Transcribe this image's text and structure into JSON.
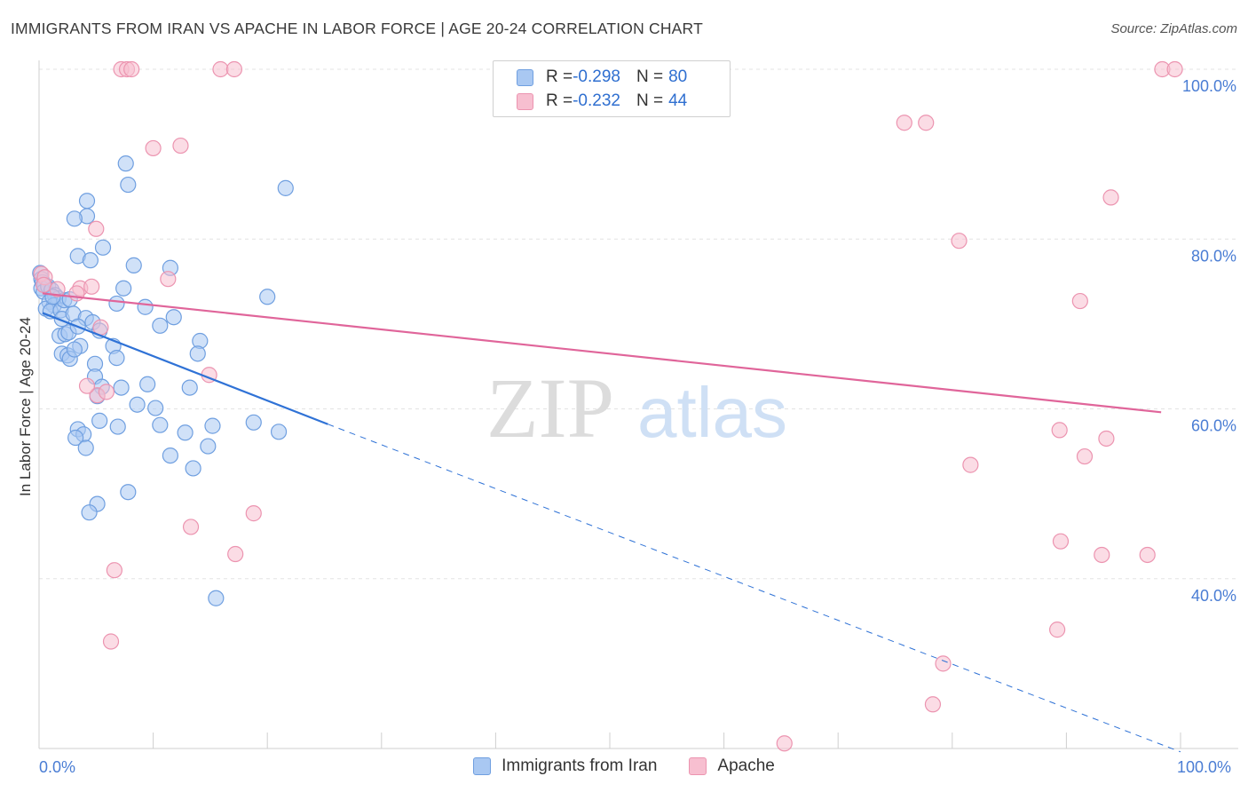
{
  "title": "IMMIGRANTS FROM IRAN VS APACHE IN LABOR FORCE | AGE 20-24 CORRELATION CHART",
  "source": "Source: ZipAtlas.com",
  "watermark": {
    "part1": "ZIP",
    "part2": "atlas"
  },
  "legend": {
    "rows": [
      {
        "r_label": "R = ",
        "r_value": "-0.298",
        "n_label": "N = ",
        "n_value": "80"
      },
      {
        "r_label": "R = ",
        "r_value": "-0.232",
        "n_label": "N = ",
        "n_value": "44"
      }
    ]
  },
  "bottom_legend": [
    "Immigrants from Iran",
    "Apache"
  ],
  "colors": {
    "iran_fill": "#a9c8f2",
    "iran_stroke": "#6f9fe0",
    "iran_line": "#2f72d6",
    "apache_fill": "#f7bfd0",
    "apache_stroke": "#ec94b0",
    "apache_line": "#e0659a",
    "axis_text": "#4a7dd4",
    "grid": "#e3e3e3"
  },
  "chart_data": {
    "type": "scatter",
    "title": "IMMIGRANTS FROM IRAN VS APACHE IN LABOR FORCE | AGE 20-24 CORRELATION CHART",
    "xlabel": "",
    "ylabel": "In Labor Force | Age 20-24",
    "xlim": [
      0,
      100
    ],
    "ylim": [
      20,
      100
    ],
    "x_tick_labels": [
      "0.0%",
      "100.0%"
    ],
    "y_ticks": [
      40,
      60,
      80,
      100
    ],
    "y_tick_labels": [
      "40.0%",
      "60.0%",
      "80.0%",
      "100.0%"
    ],
    "series": [
      {
        "name": "Immigrants from Iran",
        "r": -0.298,
        "n": 80,
        "trend": {
          "x0": 0.3,
          "y0": 71.3,
          "x1": 25.3,
          "y1": 58.2,
          "dash_to_x": 100,
          "dash_to_y": 19.6
        },
        "points": [
          [
            0.1,
            76.0
          ],
          [
            0.2,
            75.3
          ],
          [
            0.3,
            74.9
          ],
          [
            0.5,
            74.6
          ],
          [
            0.2,
            74.2
          ],
          [
            0.4,
            73.8
          ],
          [
            0.8,
            74.4
          ],
          [
            1.1,
            74.0
          ],
          [
            1.4,
            73.4
          ],
          [
            1.7,
            73.0
          ],
          [
            0.9,
            72.6
          ],
          [
            1.3,
            72.2
          ],
          [
            0.6,
            71.8
          ],
          [
            1.0,
            71.5
          ],
          [
            1.9,
            71.6
          ],
          [
            2.2,
            72.8
          ],
          [
            2.7,
            72.9
          ],
          [
            2.0,
            70.6
          ],
          [
            3.0,
            71.2
          ],
          [
            4.1,
            70.7
          ],
          [
            4.7,
            70.2
          ],
          [
            1.8,
            68.6
          ],
          [
            2.3,
            68.8
          ],
          [
            2.6,
            69.0
          ],
          [
            3.4,
            69.7
          ],
          [
            5.3,
            69.2
          ],
          [
            2.0,
            66.5
          ],
          [
            2.5,
            66.3
          ],
          [
            2.7,
            65.9
          ],
          [
            3.6,
            67.4
          ],
          [
            3.1,
            67.0
          ],
          [
            6.5,
            67.4
          ],
          [
            6.8,
            66.0
          ],
          [
            4.9,
            65.3
          ],
          [
            4.9,
            63.8
          ],
          [
            5.5,
            62.6
          ],
          [
            5.1,
            61.5
          ],
          [
            7.2,
            62.5
          ],
          [
            3.4,
            78.0
          ],
          [
            4.5,
            77.5
          ],
          [
            5.6,
            79.0
          ],
          [
            4.2,
            82.7
          ],
          [
            3.1,
            82.4
          ],
          [
            4.2,
            84.5
          ],
          [
            7.6,
            88.9
          ],
          [
            7.8,
            86.4
          ],
          [
            8.3,
            76.9
          ],
          [
            7.4,
            74.2
          ],
          [
            6.8,
            72.4
          ],
          [
            9.3,
            72.0
          ],
          [
            10.6,
            69.8
          ],
          [
            11.8,
            70.8
          ],
          [
            11.5,
            76.6
          ],
          [
            14.1,
            68.0
          ],
          [
            13.9,
            66.5
          ],
          [
            21.6,
            86.0
          ],
          [
            20.0,
            73.2
          ],
          [
            9.5,
            62.9
          ],
          [
            8.6,
            60.5
          ],
          [
            10.2,
            60.1
          ],
          [
            13.2,
            62.5
          ],
          [
            5.3,
            58.6
          ],
          [
            6.9,
            57.9
          ],
          [
            10.6,
            58.1
          ],
          [
            12.8,
            57.2
          ],
          [
            15.2,
            58.0
          ],
          [
            18.8,
            58.4
          ],
          [
            21.0,
            57.3
          ],
          [
            3.4,
            57.6
          ],
          [
            3.9,
            57.0
          ],
          [
            3.2,
            56.6
          ],
          [
            4.1,
            55.4
          ],
          [
            11.5,
            54.5
          ],
          [
            14.8,
            55.6
          ],
          [
            13.5,
            53.0
          ],
          [
            7.8,
            50.2
          ],
          [
            5.1,
            48.8
          ],
          [
            4.4,
            47.8
          ],
          [
            15.5,
            37.7
          ],
          [
            1.2,
            73.2
          ]
        ]
      },
      {
        "name": "Apache",
        "r": -0.232,
        "n": 44,
        "trend": {
          "x0": 0.3,
          "y0": 73.6,
          "x1": 98.3,
          "y1": 59.6
        },
        "points": [
          [
            7.2,
            100.0
          ],
          [
            7.7,
            100.0
          ],
          [
            8.1,
            100.0
          ],
          [
            15.9,
            100.0
          ],
          [
            17.1,
            100.0
          ],
          [
            98.4,
            100.0
          ],
          [
            99.5,
            100.0
          ],
          [
            10.0,
            90.7
          ],
          [
            12.4,
            91.0
          ],
          [
            75.8,
            93.7
          ],
          [
            77.7,
            93.7
          ],
          [
            93.9,
            84.9
          ],
          [
            80.6,
            79.8
          ],
          [
            5.0,
            81.2
          ],
          [
            0.2,
            75.9
          ],
          [
            0.5,
            75.5
          ],
          [
            0.4,
            74.6
          ],
          [
            1.6,
            74.1
          ],
          [
            3.6,
            74.2
          ],
          [
            4.6,
            74.4
          ],
          [
            3.3,
            73.6
          ],
          [
            11.3,
            75.3
          ],
          [
            5.4,
            69.6
          ],
          [
            91.2,
            72.7
          ],
          [
            14.9,
            64.0
          ],
          [
            5.1,
            61.6
          ],
          [
            5.9,
            62.0
          ],
          [
            89.4,
            57.5
          ],
          [
            93.5,
            56.5
          ],
          [
            91.6,
            54.4
          ],
          [
            81.6,
            53.4
          ],
          [
            18.8,
            47.7
          ],
          [
            13.3,
            46.1
          ],
          [
            17.2,
            42.9
          ],
          [
            89.5,
            44.4
          ],
          [
            93.1,
            42.8
          ],
          [
            97.1,
            42.8
          ],
          [
            6.6,
            41.0
          ],
          [
            6.3,
            32.6
          ],
          [
            89.2,
            34.0
          ],
          [
            79.2,
            30.0
          ],
          [
            78.3,
            25.2
          ],
          [
            65.3,
            20.6
          ],
          [
            4.2,
            62.7
          ]
        ]
      }
    ]
  }
}
